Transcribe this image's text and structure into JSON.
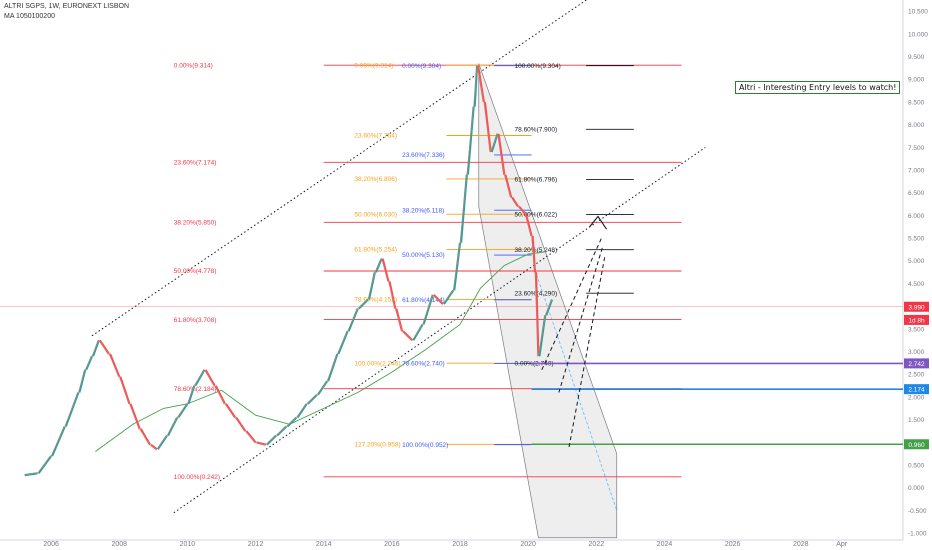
{
  "header": {
    "symbol_line": "ALTRI SGPS, 1W, EURONEXT LISBON",
    "ma_line": "MA 1050100200"
  },
  "annotation": "Altri - Interesting Entry levels to watch!",
  "colors": {
    "fib_red": "#f23645",
    "fib_orange": "#f7a21b",
    "fib_blue": "#3d5afe",
    "fib_black": "#131722",
    "green": "#43a047",
    "purple": "#7e57c2",
    "steel": "#1e88e5",
    "price_line": "#f23645"
  },
  "chart_data": {
    "type": "line",
    "title": "ALTRI SGPS, 1W, EURONEXT LISBON",
    "x_axis": {
      "ticks": [
        "2006",
        "2008",
        "2010",
        "2012",
        "2014",
        "2016",
        "2018",
        "2020",
        "2022",
        "2024",
        "2026",
        "2028",
        "Apr"
      ],
      "range": [
        2004.5,
        2031
      ]
    },
    "y_axis": {
      "ticks": [
        "10.500",
        "10.000",
        "9.500",
        "9.000",
        "8.500",
        "8.000",
        "7.500",
        "7.000",
        "6.500",
        "6.000",
        "5.500",
        "5.000",
        "4.500",
        "4.000",
        "3.500",
        "3.000",
        "2.500",
        "2.000",
        "1.500",
        "1.000",
        "0.500",
        "0.000",
        "-0.500",
        "-1.000"
      ],
      "range": [
        -1.15,
        10.75
      ],
      "side": "right"
    },
    "series": [
      {
        "name": "",
        "values_x": [
          2005.2,
          2005.6,
          2006.0,
          2006.4,
          2006.8,
          2007.0,
          2007.2,
          2007.4,
          2007.7,
          2008.0,
          2008.3,
          2008.6,
          2008.9,
          2009.1,
          2009.4,
          2009.7,
          2010.0,
          2010.2,
          2010.5,
          2010.8,
          2011.1,
          2011.4,
          2011.7,
          2012.0,
          2012.3,
          2012.6,
          2012.9,
          2013.2,
          2013.5,
          2013.8,
          2014.1,
          2014.4,
          2014.7,
          2015.0,
          2015.3,
          2015.5,
          2015.7,
          2015.9,
          2016.1,
          2016.3,
          2016.6,
          2016.9,
          2017.2,
          2017.5,
          2017.8,
          2018.0,
          2018.2,
          2018.4,
          2018.5,
          2018.7,
          2018.9,
          2019.1,
          2019.3,
          2019.5,
          2019.7,
          2019.9,
          2020.1,
          2020.2,
          2020.3,
          2020.5,
          2020.7
        ],
        "values_y": [
          0.28,
          0.32,
          0.7,
          1.35,
          2.1,
          2.6,
          2.9,
          3.25,
          2.95,
          2.45,
          1.85,
          1.3,
          0.95,
          0.85,
          1.15,
          1.55,
          1.85,
          2.25,
          2.6,
          2.25,
          1.85,
          1.55,
          1.25,
          1.0,
          0.95,
          1.15,
          1.35,
          1.55,
          1.85,
          2.05,
          2.35,
          2.95,
          3.45,
          3.95,
          4.15,
          4.75,
          5.05,
          4.55,
          3.95,
          3.45,
          3.25,
          3.6,
          4.25,
          4.05,
          4.35,
          5.4,
          6.9,
          8.4,
          9.3,
          8.5,
          7.4,
          7.8,
          6.9,
          6.4,
          6.2,
          6.05,
          5.55,
          4.75,
          2.9,
          3.8,
          4.15
        ]
      },
      {
        "name": "",
        "values_x": [
          2007.3,
          2008.4,
          2009.3,
          2010.0,
          2011.0,
          2012.0,
          2013.0,
          2014.0,
          2015.0,
          2016.0,
          2017.0,
          2018.0,
          2018.6,
          2019.3,
          2020.0,
          2020.5
        ],
        "values_y": [
          0.8,
          1.4,
          1.75,
          1.85,
          2.15,
          1.6,
          1.4,
          1.75,
          2.1,
          2.55,
          3.05,
          3.6,
          4.4,
          4.9,
          5.15,
          5.2
        ]
      }
    ],
    "fib_levels": [
      {
        "label": "0.00%(9.314)",
        "value": 9.314,
        "color": "red"
      },
      {
        "label": "23.60%(7.174)",
        "value": 7.174,
        "color": "red"
      },
      {
        "label": "38.20%(5.850)",
        "value": 5.85,
        "color": "red"
      },
      {
        "label": "50.00%(4.778)",
        "value": 4.778,
        "color": "red"
      },
      {
        "label": "61.80%(3.708)",
        "value": 3.708,
        "color": "red"
      },
      {
        "label": "78.60%(2.184)",
        "value": 2.184,
        "color": "red"
      },
      {
        "label": "100.00%(0.242)",
        "value": 0.242,
        "color": "red"
      },
      {
        "label": "0.00%(9.314)",
        "value": 9.314,
        "color": "orange"
      },
      {
        "label": "23.60%(7.764)",
        "value": 7.764,
        "color": "orange"
      },
      {
        "label": "38.20%(6.806)",
        "value": 6.806,
        "color": "orange"
      },
      {
        "label": "50.00%(6.030)",
        "value": 6.03,
        "color": "orange"
      },
      {
        "label": "61.80%(5.254)",
        "value": 5.254,
        "color": "orange"
      },
      {
        "label": "78.60%(4.152)",
        "value": 4.152,
        "color": "orange"
      },
      {
        "label": "100.00%(2.746)",
        "value": 2.746,
        "color": "orange"
      },
      {
        "label": "127.20%(0.958)",
        "value": 0.958,
        "color": "orange"
      },
      {
        "label": "0.00%(9.304)",
        "value": 9.304,
        "color": "blue"
      },
      {
        "label": "23.60%(7.336)",
        "value": 7.336,
        "color": "blue"
      },
      {
        "label": "38.20%(6.118)",
        "value": 6.118,
        "color": "blue"
      },
      {
        "label": "50.00%(5.130)",
        "value": 5.13,
        "color": "blue"
      },
      {
        "label": "61.80%(4.144)",
        "value": 4.144,
        "color": "blue"
      },
      {
        "label": "78.60%(2.740)",
        "value": 2.74,
        "color": "blue"
      },
      {
        "label": "100.00%(0.952)",
        "value": 0.952,
        "color": "blue"
      },
      {
        "label": "100.00%(9.304)",
        "value": 9.304,
        "color": "black"
      },
      {
        "label": "78.60%(7.900)",
        "value": 7.9,
        "color": "black"
      },
      {
        "label": "61.80%(6.796)",
        "value": 6.796,
        "color": "black"
      },
      {
        "label": "50.00%(6.022)",
        "value": 6.022,
        "color": "black"
      },
      {
        "label": "38.20%(5.248)",
        "value": 5.248,
        "color": "black"
      },
      {
        "label": "23.60%(4.290)",
        "value": 4.29,
        "color": "black"
      },
      {
        "label": "0.00%(2.740)",
        "value": 2.74,
        "color": "black"
      }
    ],
    "price_tags": [
      {
        "label": "3.990",
        "value": 3.99,
        "color": "red"
      },
      {
        "label": "1d 8h",
        "value": 3.7,
        "color": "red"
      },
      {
        "label": "2.742",
        "value": 2.742,
        "color": "purple"
      },
      {
        "label": "2.174",
        "value": 2.174,
        "color": "steel"
      },
      {
        "label": "0.960",
        "value": 0.96,
        "color": "green"
      }
    ],
    "current_price": 3.99,
    "horizontal_lines": [
      {
        "value": 2.742,
        "color": "purple"
      },
      {
        "value": 2.174,
        "color": "steel"
      },
      {
        "value": 0.96,
        "color": "green"
      }
    ],
    "grid": false,
    "legend": "none"
  }
}
